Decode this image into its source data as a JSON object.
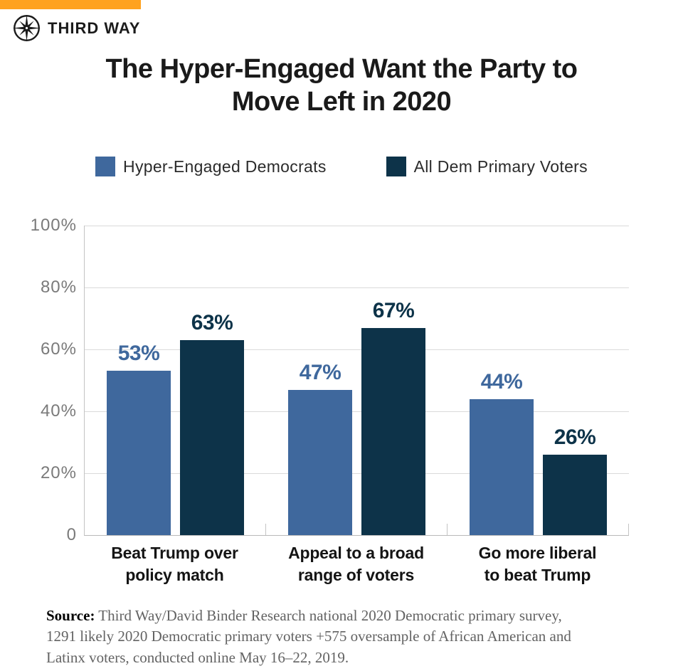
{
  "brand": {
    "logo_text": "THIRD WAY",
    "accent_color": "#FFA21F"
  },
  "title": "The Hyper-Engaged Want the Party to\nMove Left in 2020",
  "legend": [
    {
      "label": "Hyper-Engaged Democrats",
      "color": "#3F689D"
    },
    {
      "label": "All Dem Primary Voters",
      "color": "#0D3349"
    }
  ],
  "chart_data": {
    "type": "bar",
    "categories": [
      "Beat Trump over\npolicy match",
      "Appeal to a broad\nrange of voters",
      "Go more liberal\nto beat Trump"
    ],
    "series": [
      {
        "name": "Hyper-Engaged Democrats",
        "color": "#3F689D",
        "values": [
          53,
          47,
          44
        ]
      },
      {
        "name": "All Dem Primary Voters",
        "color": "#0D3349",
        "values": [
          63,
          67,
          26
        ]
      }
    ],
    "value_label_format": "{v}%",
    "ylim": [
      0,
      100
    ],
    "yticks": [
      0,
      20,
      40,
      60,
      80,
      100
    ],
    "ytick_labels": [
      "0",
      "20%",
      "40%",
      "60%",
      "80%",
      "100%"
    ],
    "grid": true,
    "legend_position": "top",
    "grid_color": "#dadada",
    "axis_color": "#c4c4c4"
  },
  "source": {
    "label": "Source:",
    "text": " Third Way/David Binder Research national 2020 Democratic primary survey,\n1291 likely 2020 Democratic primary voters +575 oversample of African American and\nLatinx voters, conducted online May 16–22, 2019."
  }
}
